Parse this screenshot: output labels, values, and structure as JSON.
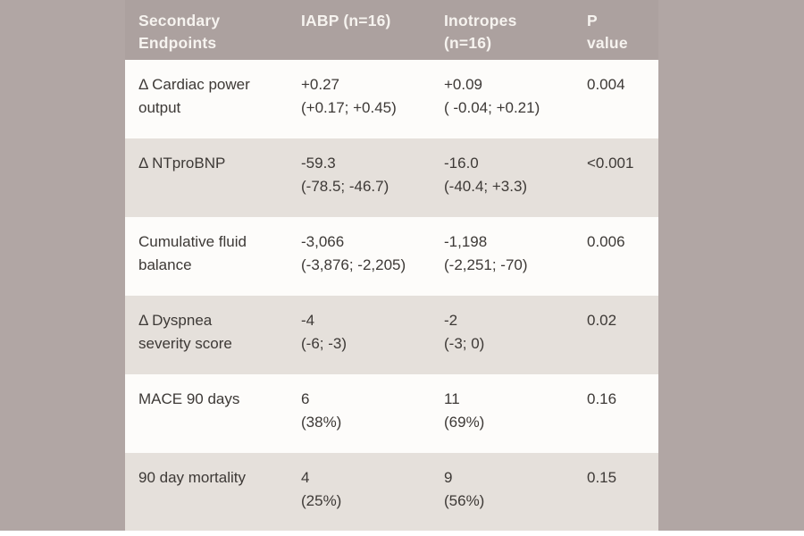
{
  "colors": {
    "page_background": "#b1a6a4",
    "header_background": "#aca19f",
    "header_text": "#f6f3ef",
    "row_light": "#fdfcfa",
    "row_dark": "#e5e0db",
    "body_text": "#3d3936",
    "bottom_strip": "#ffffff"
  },
  "table": {
    "columns": [
      {
        "id": "endpoint",
        "label": "Secondary Endpoints",
        "lines": [
          "Secondary",
          "Endpoints"
        ]
      },
      {
        "id": "iabp",
        "label": "IABP (n=16)",
        "lines": [
          "IABP (n=16)"
        ]
      },
      {
        "id": "inotropes",
        "label": "Inotropes (n=16)",
        "lines": [
          "Inotropes",
          "(n=16)"
        ]
      },
      {
        "id": "p-value",
        "label": "P value",
        "lines": [
          "P",
          "value"
        ]
      }
    ],
    "rows": [
      {
        "endpoint_lines": [
          "Δ Cardiac power",
          "output"
        ],
        "iabp": {
          "value": "+0.27",
          "ci": "(+0.17; +0.45)"
        },
        "inotropes": {
          "value": "+0.09",
          "ci": "( -0.04; +0.21)"
        },
        "p_value": "0.004"
      },
      {
        "endpoint_lines": [
          "Δ NTproBNP"
        ],
        "iabp": {
          "value": "-59.3",
          "ci": "(-78.5; -46.7)"
        },
        "inotropes": {
          "value": "-16.0",
          "ci": "(-40.4; +3.3)"
        },
        "p_value": "<0.001"
      },
      {
        "endpoint_lines": [
          "Cumulative fluid",
          "balance"
        ],
        "iabp": {
          "value": "-3,066",
          "ci": "(-3,876; -2,205)"
        },
        "inotropes": {
          "value": "-1,198",
          "ci": "(-2,251; -70)"
        },
        "p_value": "0.006"
      },
      {
        "endpoint_lines": [
          "Δ Dyspnea",
          "severity score"
        ],
        "iabp": {
          "value": "-4",
          "ci": "(-6; -3)"
        },
        "inotropes": {
          "value": "-2",
          "ci": "(-3; 0)"
        },
        "p_value": "0.02"
      },
      {
        "endpoint_lines": [
          "MACE 90 days"
        ],
        "iabp": {
          "value": "6",
          "ci": "(38%)"
        },
        "inotropes": {
          "value": "11",
          "ci": "(69%)"
        },
        "p_value": "0.16"
      },
      {
        "endpoint_lines": [
          "90 day mortality"
        ],
        "iabp": {
          "value": "4",
          "ci": "(25%)"
        },
        "inotropes": {
          "value": "9",
          "ci": "(56%)"
        },
        "p_value": "0.15"
      }
    ]
  }
}
